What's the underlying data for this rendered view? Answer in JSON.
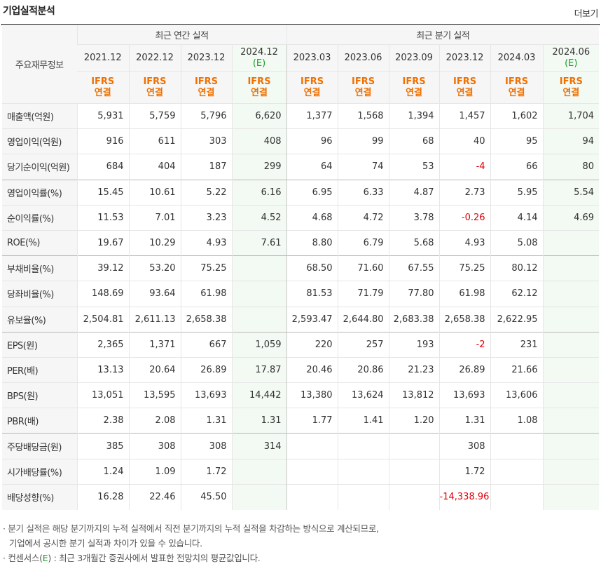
{
  "header": {
    "title": "기업실적분석",
    "more_label": "더보기"
  },
  "table": {
    "row_header_label": "주요재무정보",
    "annual_group_label": "최근 연간 실적",
    "quarter_group_label": "최근 분기 실적",
    "periods": [
      {
        "label": "2021.12"
      },
      {
        "label": "2022.12"
      },
      {
        "label": "2023.12"
      },
      {
        "label": "2024.12",
        "est": "(E)"
      },
      {
        "label": "2023.03"
      },
      {
        "label": "2023.06"
      },
      {
        "label": "2023.09"
      },
      {
        "label": "2023.12"
      },
      {
        "label": "2024.03"
      },
      {
        "label": "2024.06",
        "est": "(E)"
      }
    ],
    "basis_top": "IFRS",
    "basis_bottom": "연결",
    "rows": [
      {
        "label": "매출액(억원)",
        "values": [
          "5,931",
          "5,759",
          "5,796",
          "6,620",
          "1,377",
          "1,568",
          "1,394",
          "1,457",
          "1,602",
          "1,704"
        ]
      },
      {
        "label": "영업이익(억원)",
        "values": [
          "916",
          "611",
          "303",
          "408",
          "96",
          "99",
          "68",
          "40",
          "95",
          "94"
        ]
      },
      {
        "label": "당기순이익(억원)",
        "values": [
          "684",
          "404",
          "187",
          "299",
          "64",
          "74",
          "53",
          "-4",
          "66",
          "80"
        ]
      },
      {
        "label": "영업이익률(%)",
        "values": [
          "15.45",
          "10.61",
          "5.22",
          "6.16",
          "6.95",
          "6.33",
          "4.87",
          "2.73",
          "5.95",
          "5.54"
        ]
      },
      {
        "label": "순이익률(%)",
        "values": [
          "11.53",
          "7.01",
          "3.23",
          "4.52",
          "4.68",
          "4.72",
          "3.78",
          "-0.26",
          "4.14",
          "4.69"
        ]
      },
      {
        "label": "ROE(%)",
        "values": [
          "19.67",
          "10.29",
          "4.93",
          "7.61",
          "8.80",
          "6.79",
          "5.68",
          "4.93",
          "5.08",
          ""
        ]
      },
      {
        "label": "부채비율(%)",
        "values": [
          "39.12",
          "53.20",
          "75.25",
          "",
          "68.50",
          "71.60",
          "67.55",
          "75.25",
          "80.12",
          ""
        ]
      },
      {
        "label": "당좌비율(%)",
        "values": [
          "148.69",
          "93.64",
          "61.98",
          "",
          "81.53",
          "71.79",
          "77.80",
          "61.98",
          "62.12",
          ""
        ]
      },
      {
        "label": "유보율(%)",
        "values": [
          "2,504.81",
          "2,611.13",
          "2,658.38",
          "",
          "2,593.47",
          "2,644.80",
          "2,683.38",
          "2,658.38",
          "2,622.95",
          ""
        ]
      },
      {
        "label": "EPS(원)",
        "values": [
          "2,365",
          "1,371",
          "667",
          "1,059",
          "220",
          "257",
          "193",
          "-2",
          "231",
          ""
        ]
      },
      {
        "label": "PER(배)",
        "values": [
          "13.13",
          "20.64",
          "26.89",
          "17.87",
          "20.46",
          "20.86",
          "21.23",
          "26.89",
          "21.66",
          ""
        ]
      },
      {
        "label": "BPS(원)",
        "values": [
          "13,051",
          "13,595",
          "13,693",
          "14,442",
          "13,380",
          "13,624",
          "13,812",
          "13,693",
          "13,606",
          ""
        ]
      },
      {
        "label": "PBR(배)",
        "values": [
          "2.38",
          "2.08",
          "1.31",
          "1.31",
          "1.77",
          "1.41",
          "1.20",
          "1.31",
          "1.08",
          ""
        ]
      },
      {
        "label": "주당배당금(원)",
        "values": [
          "385",
          "308",
          "308",
          "314",
          "",
          "",
          "",
          "308",
          "",
          ""
        ]
      },
      {
        "label": "시가배당률(%)",
        "values": [
          "1.24",
          "1.09",
          "1.72",
          "",
          "",
          "",
          "",
          "1.72",
          "",
          ""
        ]
      },
      {
        "label": "배당성향(%)",
        "values": [
          "16.28",
          "22.46",
          "45.50",
          "",
          "",
          "",
          "",
          "-14,338.96",
          "",
          ""
        ]
      }
    ],
    "group_starts": [
      3,
      6,
      9,
      13
    ]
  },
  "footnotes": {
    "note1_line1": "· 분기 실적은 해당 분기까지의 누적 실적에서 직전 분기까지의 누적 실적을 차감하는 방식으로 계산되므로,",
    "note1_line2": "기업에서 공시한 분기 실적과 차이가 있을 수 있습니다.",
    "note2_prefix": "· 컨센서스(",
    "note2_e": "E",
    "note2_suffix": ") : 최근 3개월간 증권사에서 발표한 전망치의 평균값입니다."
  },
  "colors": {
    "negative": "#e0000a",
    "ifrs": "#f07000",
    "estimate_tag": "#1a9d2b",
    "estimate_bg": "#f3f9f3"
  }
}
